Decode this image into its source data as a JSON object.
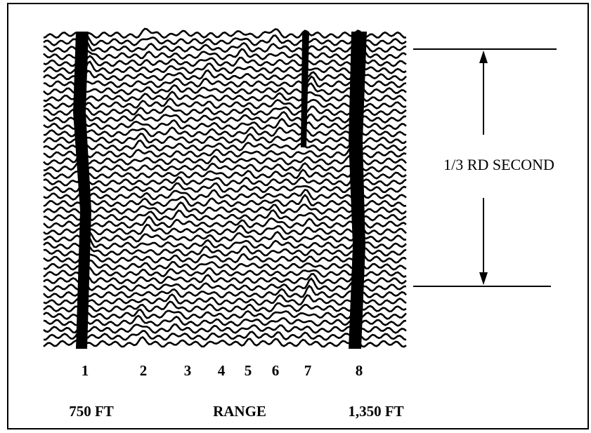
{
  "markers": [
    "1",
    "2",
    "3",
    "4",
    "5",
    "6",
    "7",
    "8"
  ],
  "range_labels": {
    "start": "750 FT",
    "middle": "RANGE",
    "end": "1,350 FT"
  },
  "scale_label": "1/3 RD SECOND"
}
